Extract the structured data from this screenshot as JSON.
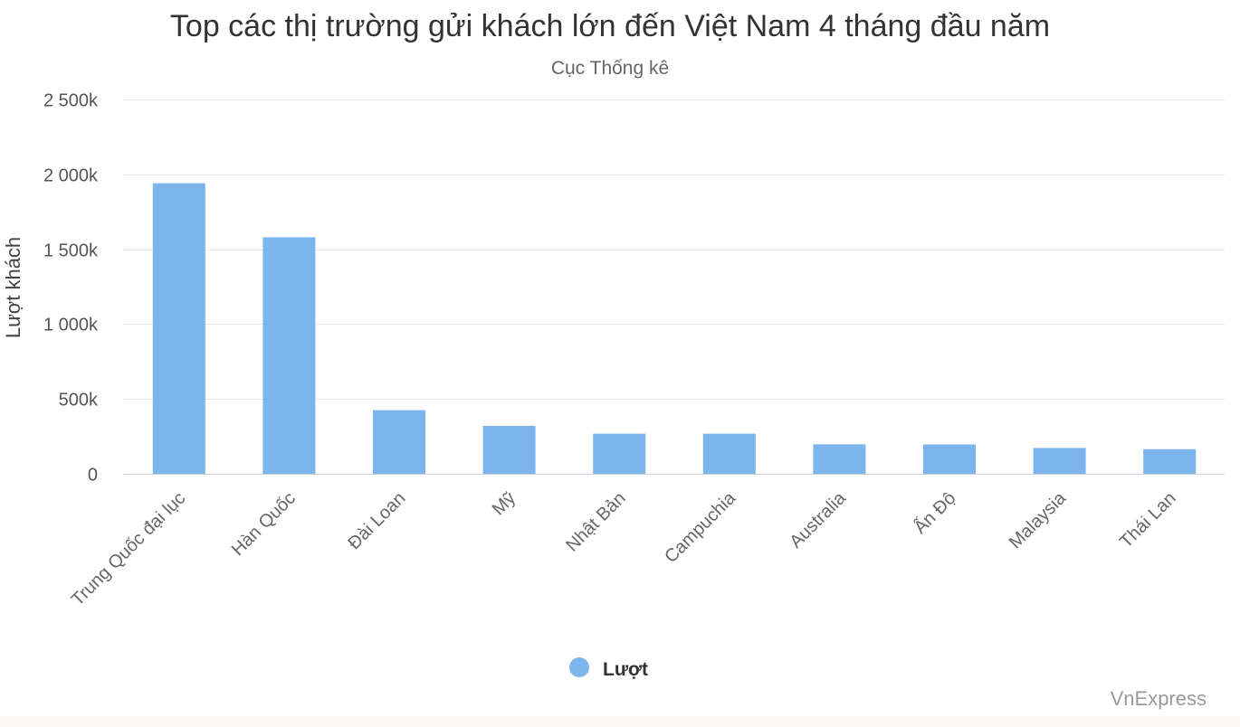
{
  "chart_data": {
    "type": "bar",
    "title": "Top các thị trường gửi khách lớn đến Việt Nam 4 tháng đầu năm",
    "subtitle": "Cục Thống kê",
    "xlabel": "",
    "ylabel": "Lượt khách",
    "ylim": [
      0,
      2500000
    ],
    "yticks": [
      0,
      500000,
      1000000,
      1500000,
      2000000,
      2500000
    ],
    "ytick_labels": [
      "0",
      "500k",
      "1 000k",
      "1 500k",
      "2 000k",
      "2 500k"
    ],
    "grid": true,
    "categories": [
      "Trung Quốc đại lục",
      "Hàn Quốc",
      "Đài Loan",
      "Mỹ",
      "Nhật Bản",
      "Campuchia",
      "Australia",
      "Ấn Độ",
      "Malaysia",
      "Thái Lan"
    ],
    "series": [
      {
        "name": "Lượt",
        "color": "#7cb5ec",
        "values": [
          1940000,
          1580000,
          425000,
          320000,
          268000,
          268000,
          197000,
          196000,
          173000,
          164000
        ]
      }
    ],
    "legend": "bottom-center",
    "credit": "VnExpress"
  }
}
